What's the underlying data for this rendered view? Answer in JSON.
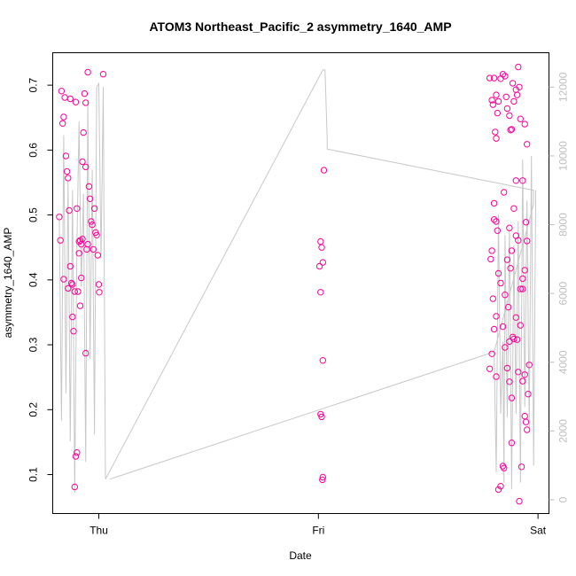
{
  "chart_data": {
    "type": "scatter",
    "title": "ATOM3 Northeast_Pacific_2 asymmetry_1640_AMP",
    "xlabel": "Date",
    "ylabel": "asymmetry_1640_AMP",
    "x_ticks": [
      "Thu",
      "Fri",
      "Sat"
    ],
    "y_ticks": [
      "0.1",
      "0.2",
      "0.3",
      "0.4",
      "0.5",
      "0.6",
      "0.7"
    ],
    "y2_ticks": [
      "0",
      "2000",
      "4000",
      "6000",
      "8000",
      "10000",
      "12000"
    ],
    "xlim_days": [
      -0.21,
      2.05
    ],
    "ylim": [
      0.04,
      0.75
    ],
    "y2lim": [
      -400,
      13000
    ],
    "grid": false,
    "legend": "none",
    "colors": {
      "points": "#ff0099",
      "line": "#c8c8c8",
      "right_axis": "#bebebe"
    },
    "series": [
      {
        "marker": "circle",
        "points": [
          [
            -0.17,
            0.691
          ],
          [
            -0.165,
            0.641
          ],
          [
            -0.16,
            0.651
          ],
          [
            -0.155,
            0.681
          ],
          [
            -0.15,
            0.591
          ],
          [
            -0.145,
            0.567
          ],
          [
            -0.14,
            0.557
          ],
          [
            -0.135,
            0.507
          ],
          [
            -0.13,
            0.421
          ],
          [
            -0.125,
            0.395
          ],
          [
            -0.12,
            0.343
          ],
          [
            -0.115,
            0.321
          ],
          [
            -0.11,
            0.081
          ],
          [
            -0.105,
            0.128
          ],
          [
            -0.1,
            0.134
          ],
          [
            -0.095,
            0.382
          ],
          [
            -0.09,
            0.459
          ],
          [
            -0.085,
            0.461
          ],
          [
            -0.08,
            0.403
          ],
          [
            -0.075,
            0.582
          ],
          [
            -0.07,
            0.627
          ],
          [
            -0.065,
            0.687
          ],
          [
            -0.06,
            0.574
          ],
          [
            -0.055,
            0.447
          ],
          [
            -0.05,
            0.455
          ],
          [
            -0.045,
            0.544
          ],
          [
            -0.04,
            0.525
          ],
          [
            -0.035,
            0.49
          ],
          [
            -0.03,
            0.485
          ],
          [
            -0.025,
            0.447
          ],
          [
            -0.02,
            0.51
          ],
          [
            -0.015,
            0.473
          ],
          [
            -0.01,
            0.469
          ],
          [
            -0.005,
            0.438
          ],
          [
            0.0,
            0.393
          ],
          [
            0.002,
            0.381
          ],
          [
            -0.085,
            0.36
          ],
          [
            -0.06,
            0.287
          ],
          [
            -0.12,
            0.393
          ],
          [
            -0.18,
            0.497
          ],
          [
            -0.175,
            0.461
          ],
          [
            -0.16,
            0.401
          ],
          [
            -0.13,
            0.679
          ],
          [
            -0.105,
            0.674
          ],
          [
            -0.08,
            0.455
          ],
          [
            -0.05,
            0.72
          ],
          [
            -0.1,
            0.51
          ],
          [
            -0.075,
            0.463
          ],
          [
            -0.06,
            0.673
          ],
          [
            0.02,
            0.717
          ],
          [
            -0.14,
            0.387
          ],
          [
            -0.09,
            0.441
          ],
          [
            -0.11,
            0.382
          ],
          [
            1.01,
            0.459
          ],
          [
            1.015,
            0.45
          ],
          [
            1.02,
            0.427
          ],
          [
            1.005,
            0.421
          ],
          [
            1.025,
            0.569
          ],
          [
            1.01,
            0.381
          ],
          [
            1.02,
            0.276
          ],
          [
            1.01,
            0.193
          ],
          [
            1.015,
            0.189
          ],
          [
            1.02,
            0.096
          ],
          [
            1.018,
            0.092
          ],
          [
            1.78,
            0.711
          ],
          [
            1.79,
            0.677
          ],
          [
            1.8,
            0.711
          ],
          [
            1.81,
            0.685
          ],
          [
            1.795,
            0.67
          ],
          [
            1.805,
            0.628
          ],
          [
            1.81,
            0.618
          ],
          [
            1.815,
            0.657
          ],
          [
            1.82,
            0.675
          ],
          [
            1.83,
            0.71
          ],
          [
            1.84,
            0.717
          ],
          [
            1.85,
            0.714
          ],
          [
            1.855,
            0.682
          ],
          [
            1.86,
            0.664
          ],
          [
            1.87,
            0.653
          ],
          [
            1.875,
            0.631
          ],
          [
            1.88,
            0.632
          ],
          [
            1.885,
            0.703
          ],
          [
            1.89,
            0.675
          ],
          [
            1.9,
            0.693
          ],
          [
            1.905,
            0.685
          ],
          [
            1.91,
            0.728
          ],
          [
            1.915,
            0.697
          ],
          [
            1.92,
            0.648
          ],
          [
            1.93,
            0.553
          ],
          [
            1.94,
            0.64
          ],
          [
            1.95,
            0.609
          ],
          [
            1.79,
            0.445
          ],
          [
            1.795,
            0.371
          ],
          [
            1.8,
            0.493
          ],
          [
            1.81,
            0.49
          ],
          [
            1.82,
            0.41
          ],
          [
            1.83,
            0.395
          ],
          [
            1.84,
            0.328
          ],
          [
            1.85,
            0.377
          ],
          [
            1.86,
            0.431
          ],
          [
            1.87,
            0.48
          ],
          [
            1.875,
            0.418
          ],
          [
            1.88,
            0.445
          ],
          [
            1.89,
            0.51
          ],
          [
            1.9,
            0.468
          ],
          [
            1.91,
            0.461
          ],
          [
            1.92,
            0.386
          ],
          [
            1.93,
            0.402
          ],
          [
            1.94,
            0.415
          ],
          [
            1.945,
            0.489
          ],
          [
            1.95,
            0.46
          ],
          [
            1.78,
            0.263
          ],
          [
            1.79,
            0.286
          ],
          [
            1.8,
            0.324
          ],
          [
            1.81,
            0.251
          ],
          [
            1.82,
            0.077
          ],
          [
            1.83,
            0.082
          ],
          [
            1.84,
            0.113
          ],
          [
            1.845,
            0.11
          ],
          [
            1.85,
            0.296
          ],
          [
            1.86,
            0.264
          ],
          [
            1.87,
            0.243
          ],
          [
            1.88,
            0.218
          ],
          [
            1.885,
            0.312
          ],
          [
            1.89,
            0.309
          ],
          [
            1.9,
            0.342
          ],
          [
            1.905,
            0.308
          ],
          [
            1.91,
            0.258
          ],
          [
            1.915,
            0.059
          ],
          [
            1.92,
            0.33
          ],
          [
            1.93,
            0.244
          ],
          [
            1.94,
            0.19
          ],
          [
            1.945,
            0.181
          ],
          [
            1.95,
            0.169
          ],
          [
            1.955,
            0.224
          ],
          [
            1.785,
            0.432
          ],
          [
            1.8,
            0.518
          ],
          [
            1.815,
            0.476
          ],
          [
            1.845,
            0.535
          ],
          [
            1.865,
            0.358
          ],
          [
            1.88,
            0.149
          ],
          [
            1.9,
            0.553
          ],
          [
            1.925,
            0.112
          ],
          [
            1.94,
            0.254
          ],
          [
            1.96,
            0.269
          ],
          [
            1.81,
            0.344
          ],
          [
            1.87,
            0.305
          ],
          [
            1.93,
            0.386
          ]
        ]
      },
      {
        "marker": "line",
        "axis": "right",
        "points": [
          [
            -0.18,
            8200
          ],
          [
            -0.17,
            2300
          ],
          [
            -0.16,
            10600
          ],
          [
            -0.15,
            3100
          ],
          [
            -0.14,
            9300
          ],
          [
            -0.13,
            1700
          ],
          [
            -0.12,
            9000
          ],
          [
            -0.11,
            200
          ],
          [
            -0.1,
            7400
          ],
          [
            -0.09,
            11000
          ],
          [
            -0.08,
            6200
          ],
          [
            -0.07,
            8900
          ],
          [
            -0.06,
            1100
          ],
          [
            -0.05,
            11600
          ],
          [
            -0.04,
            4100
          ],
          [
            -0.03,
            9600
          ],
          [
            -0.02,
            1900
          ],
          [
            -0.01,
            12000
          ],
          [
            0.0,
            12100
          ],
          [
            0.01,
            7000
          ],
          [
            0.02,
            12000
          ],
          [
            0.03,
            600
          ],
          [
            1.02,
            12500
          ],
          [
            1.03,
            12500
          ],
          [
            1.04,
            10500
          ],
          [
            1.04,
            10200
          ],
          [
            1.98,
            9000
          ],
          [
            1.98,
            8600
          ],
          [
            1.8,
            4300
          ],
          [
            0.05,
            600
          ],
          [
            1.8,
            4300
          ],
          [
            1.81,
            800
          ],
          [
            1.82,
            8300
          ],
          [
            1.83,
            2500
          ],
          [
            1.84,
            4600
          ],
          [
            1.845,
            500
          ],
          [
            1.85,
            7700
          ],
          [
            1.86,
            2400
          ],
          [
            1.87,
            7900
          ],
          [
            1.88,
            300
          ],
          [
            1.89,
            7400
          ],
          [
            1.9,
            2500
          ],
          [
            1.91,
            8100
          ],
          [
            1.92,
            500
          ],
          [
            1.93,
            9900
          ],
          [
            1.94,
            2700
          ],
          [
            1.95,
            8700
          ],
          [
            1.96,
            2100
          ],
          [
            1.97,
            10000
          ],
          [
            1.98,
            1000
          ],
          [
            1.99,
            9000
          ]
        ]
      }
    ]
  }
}
